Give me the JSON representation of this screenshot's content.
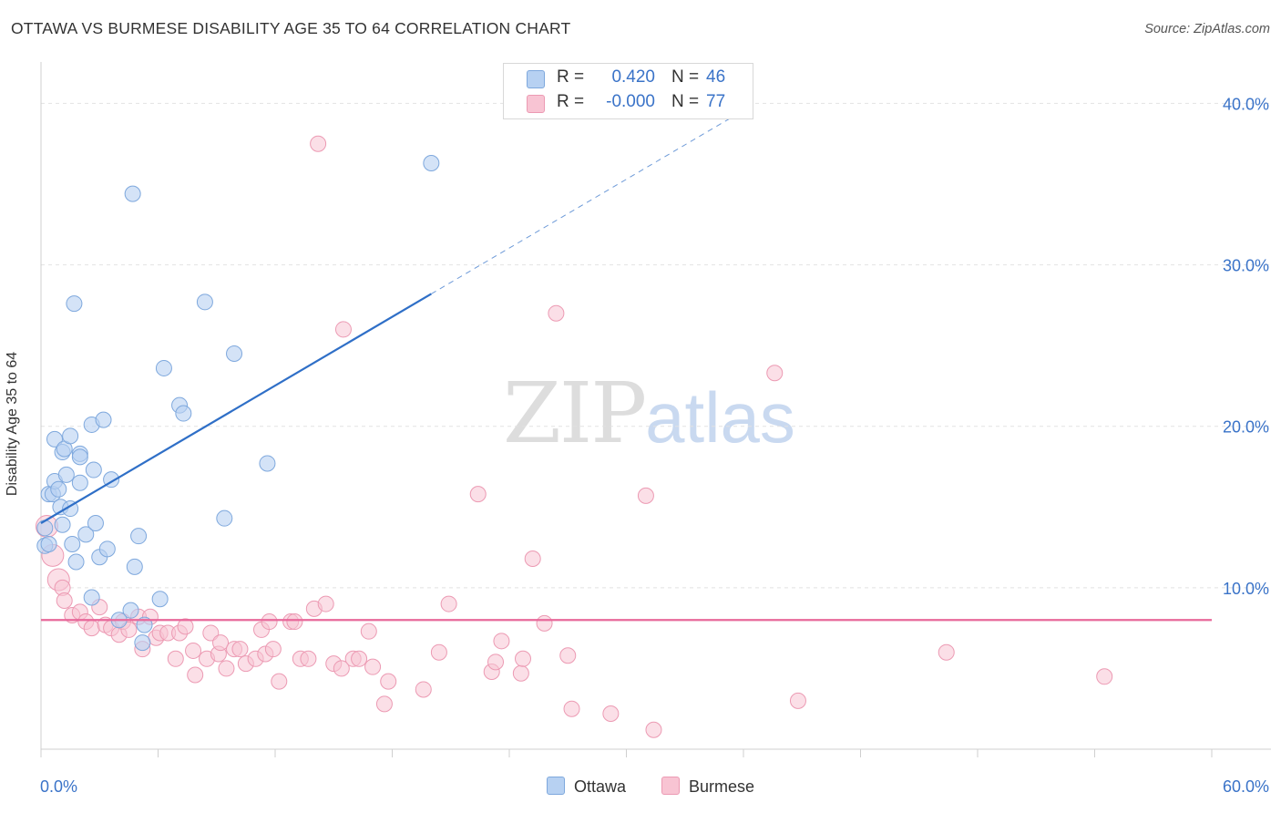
{
  "header": {
    "title": "OTTAWA VS BURMESE DISABILITY AGE 35 TO 64 CORRELATION CHART",
    "source": "Source: ZipAtlas.com"
  },
  "watermark": {
    "zip": "ZIP",
    "atlas": "atlas"
  },
  "legend": {
    "ottawa": {
      "r_label": "R =",
      "r_value": "0.420",
      "n_label": "N =",
      "n_value": "46"
    },
    "burmese": {
      "r_label": "R =",
      "r_value": "-0.000",
      "n_label": "N =",
      "n_value": "77"
    }
  },
  "bottom_legend": {
    "ottawa": "Ottawa",
    "burmese": "Burmese"
  },
  "colors": {
    "ottawa_fill": "#b7d1f2",
    "ottawa_stroke": "#7ea8dd",
    "ottawa_line": "#2f6fc7",
    "burmese_fill": "#f8c4d3",
    "burmese_stroke": "#ec9ab3",
    "burmese_line": "#e8689a",
    "tick_label": "#3a73c8",
    "grid": "#e2e2e2"
  },
  "chart_data": {
    "type": "scatter",
    "title": "OTTAWA VS BURMESE DISABILITY AGE 35 TO 64 CORRELATION CHART",
    "xlabel": "",
    "ylabel": "Disability Age 35 to 64",
    "xlim": [
      0,
      60
    ],
    "ylim": [
      0,
      42
    ],
    "x_tick_labels": [
      "0.0%",
      "60.0%"
    ],
    "y_ticks": [
      10,
      20,
      30,
      40
    ],
    "y_tick_labels": [
      "10.0%",
      "20.0%",
      "30.0%",
      "40.0%"
    ],
    "grid": true,
    "legend_position": "top-center",
    "series": [
      {
        "name": "Ottawa",
        "r": 0.42,
        "n": 46,
        "trend": {
          "x0": 0.0,
          "y0": 14.0,
          "x1": 20.0,
          "y1": 28.2,
          "dashed_to_x": 36.0
        },
        "points": [
          [
            0.2,
            12.6
          ],
          [
            0.2,
            13.7
          ],
          [
            0.4,
            15.8
          ],
          [
            0.6,
            15.8
          ],
          [
            0.7,
            19.2
          ],
          [
            0.7,
            16.6
          ],
          [
            0.9,
            16.1
          ],
          [
            1.0,
            15.0
          ],
          [
            1.1,
            13.9
          ],
          [
            1.1,
            18.4
          ],
          [
            1.2,
            18.6
          ],
          [
            1.3,
            17.0
          ],
          [
            1.5,
            14.9
          ],
          [
            1.5,
            19.4
          ],
          [
            1.6,
            12.7
          ],
          [
            1.7,
            27.6
          ],
          [
            1.8,
            11.6
          ],
          [
            2.0,
            18.3
          ],
          [
            2.0,
            18.1
          ],
          [
            2.0,
            16.5
          ],
          [
            2.3,
            13.3
          ],
          [
            2.6,
            9.4
          ],
          [
            2.6,
            20.1
          ],
          [
            2.7,
            17.3
          ],
          [
            2.8,
            14.0
          ],
          [
            3.0,
            11.9
          ],
          [
            3.2,
            20.4
          ],
          [
            3.4,
            12.4
          ],
          [
            3.6,
            16.7
          ],
          [
            4.0,
            8.0
          ],
          [
            4.6,
            8.6
          ],
          [
            4.7,
            34.4
          ],
          [
            4.8,
            11.3
          ],
          [
            5.0,
            13.2
          ],
          [
            5.2,
            6.6
          ],
          [
            5.3,
            7.7
          ],
          [
            6.1,
            9.3
          ],
          [
            6.3,
            23.6
          ],
          [
            7.1,
            21.3
          ],
          [
            7.3,
            20.8
          ],
          [
            8.4,
            27.7
          ],
          [
            9.4,
            14.3
          ],
          [
            9.9,
            24.5
          ],
          [
            11.6,
            17.7
          ],
          [
            20.0,
            36.3
          ],
          [
            0.4,
            12.7
          ]
        ]
      },
      {
        "name": "Burmese",
        "r": -0.0,
        "n": 77,
        "trend": {
          "x0": 0.0,
          "y0": 8.0,
          "x1": 60.0,
          "y1": 8.0
        },
        "points": [
          [
            0.3,
            13.8
          ],
          [
            0.6,
            12.0
          ],
          [
            0.9,
            10.5
          ],
          [
            1.1,
            10.0
          ],
          [
            1.2,
            9.2
          ],
          [
            1.6,
            8.3
          ],
          [
            2.0,
            8.5
          ],
          [
            2.3,
            7.9
          ],
          [
            2.6,
            7.5
          ],
          [
            3.0,
            8.8
          ],
          [
            3.3,
            7.7
          ],
          [
            3.6,
            7.5
          ],
          [
            4.0,
            7.1
          ],
          [
            4.2,
            7.9
          ],
          [
            4.5,
            7.4
          ],
          [
            5.0,
            8.2
          ],
          [
            5.2,
            6.2
          ],
          [
            5.6,
            8.2
          ],
          [
            5.9,
            6.9
          ],
          [
            6.1,
            7.2
          ],
          [
            6.5,
            7.2
          ],
          [
            6.9,
            5.6
          ],
          [
            7.1,
            7.2
          ],
          [
            7.4,
            7.6
          ],
          [
            7.8,
            6.1
          ],
          [
            7.9,
            4.6
          ],
          [
            8.5,
            5.6
          ],
          [
            8.7,
            7.2
          ],
          [
            9.1,
            5.9
          ],
          [
            9.2,
            6.6
          ],
          [
            9.5,
            5.0
          ],
          [
            9.9,
            6.2
          ],
          [
            10.2,
            6.2
          ],
          [
            10.5,
            5.3
          ],
          [
            11.0,
            5.6
          ],
          [
            11.3,
            7.4
          ],
          [
            11.5,
            5.9
          ],
          [
            11.7,
            7.9
          ],
          [
            11.9,
            6.2
          ],
          [
            12.2,
            4.2
          ],
          [
            12.8,
            7.9
          ],
          [
            13.0,
            7.9
          ],
          [
            13.3,
            5.6
          ],
          [
            13.7,
            5.6
          ],
          [
            14.0,
            8.7
          ],
          [
            14.2,
            37.5
          ],
          [
            14.6,
            9.0
          ],
          [
            15.0,
            5.3
          ],
          [
            15.4,
            5.0
          ],
          [
            15.5,
            26.0
          ],
          [
            16.0,
            5.6
          ],
          [
            16.3,
            5.6
          ],
          [
            16.8,
            7.3
          ],
          [
            17.0,
            5.1
          ],
          [
            17.6,
            2.8
          ],
          [
            17.8,
            4.2
          ],
          [
            19.6,
            3.7
          ],
          [
            20.4,
            6.0
          ],
          [
            20.9,
            9.0
          ],
          [
            22.4,
            15.8
          ],
          [
            23.1,
            4.8
          ],
          [
            23.3,
            5.4
          ],
          [
            23.6,
            6.7
          ],
          [
            24.6,
            4.7
          ],
          [
            24.7,
            5.6
          ],
          [
            25.2,
            11.8
          ],
          [
            25.8,
            7.8
          ],
          [
            26.4,
            27.0
          ],
          [
            27.0,
            5.8
          ],
          [
            27.2,
            2.5
          ],
          [
            29.2,
            2.2
          ],
          [
            31.0,
            15.7
          ],
          [
            31.4,
            1.2
          ],
          [
            37.6,
            23.3
          ],
          [
            38.8,
            3.0
          ],
          [
            46.4,
            6.0
          ],
          [
            54.5,
            4.5
          ]
        ]
      }
    ]
  }
}
